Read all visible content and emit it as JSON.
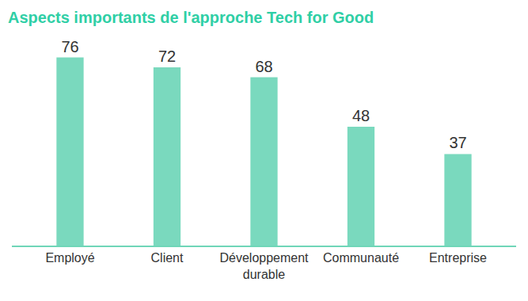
{
  "chart_data": {
    "type": "bar",
    "title": "Aspects importants de l'approche Tech for Good",
    "categories": [
      "Employé",
      "Client",
      "Développement durable",
      "Communauté",
      "Entreprise"
    ],
    "values": [
      76,
      72,
      68,
      48,
      37
    ],
    "color": "#7ad9be",
    "data_labels": true,
    "tick_labels": "x",
    "grid": false
  }
}
